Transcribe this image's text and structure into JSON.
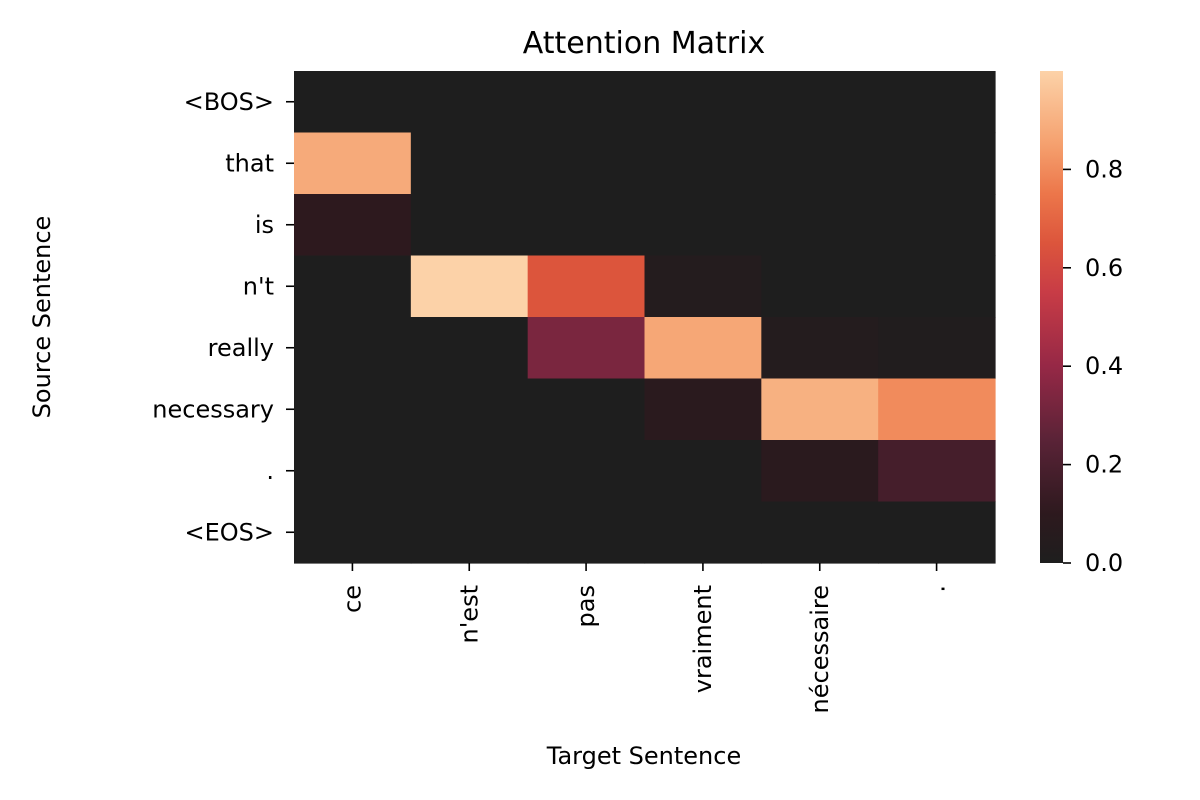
{
  "chart_data": {
    "type": "heatmap",
    "title": "Attention Matrix",
    "xlabel": "Target Sentence",
    "ylabel": "Source Sentence",
    "x_categories": [
      "ce",
      "n'est",
      "pas",
      "vraiment",
      "nécessaire",
      "."
    ],
    "y_categories": [
      "<BOS>",
      "that",
      "is",
      "n't",
      "really",
      "necessary",
      ".",
      "<EOS>"
    ],
    "values": [
      [
        0.0,
        0.0,
        0.0,
        0.0,
        0.0,
        0.0
      ],
      [
        0.88,
        0.0,
        0.0,
        0.0,
        0.0,
        0.0
      ],
      [
        0.1,
        0.0,
        0.0,
        0.0,
        0.0,
        0.0
      ],
      [
        0.0,
        1.0,
        0.65,
        0.04,
        0.0,
        0.0
      ],
      [
        0.0,
        0.0,
        0.33,
        0.87,
        0.04,
        0.02
      ],
      [
        0.0,
        0.0,
        0.0,
        0.08,
        0.9,
        0.8
      ],
      [
        0.0,
        0.0,
        0.0,
        0.0,
        0.08,
        0.18
      ],
      [
        0.0,
        0.0,
        0.0,
        0.0,
        0.0,
        0.0
      ]
    ],
    "colorbar": {
      "range": [
        0,
        1
      ],
      "ticks": [
        0.0,
        0.2,
        0.4,
        0.6,
        0.8
      ],
      "tick_labels": [
        "0.0",
        "0.2",
        "0.4",
        "0.6",
        "0.8"
      ],
      "colormap": "rocket"
    }
  }
}
